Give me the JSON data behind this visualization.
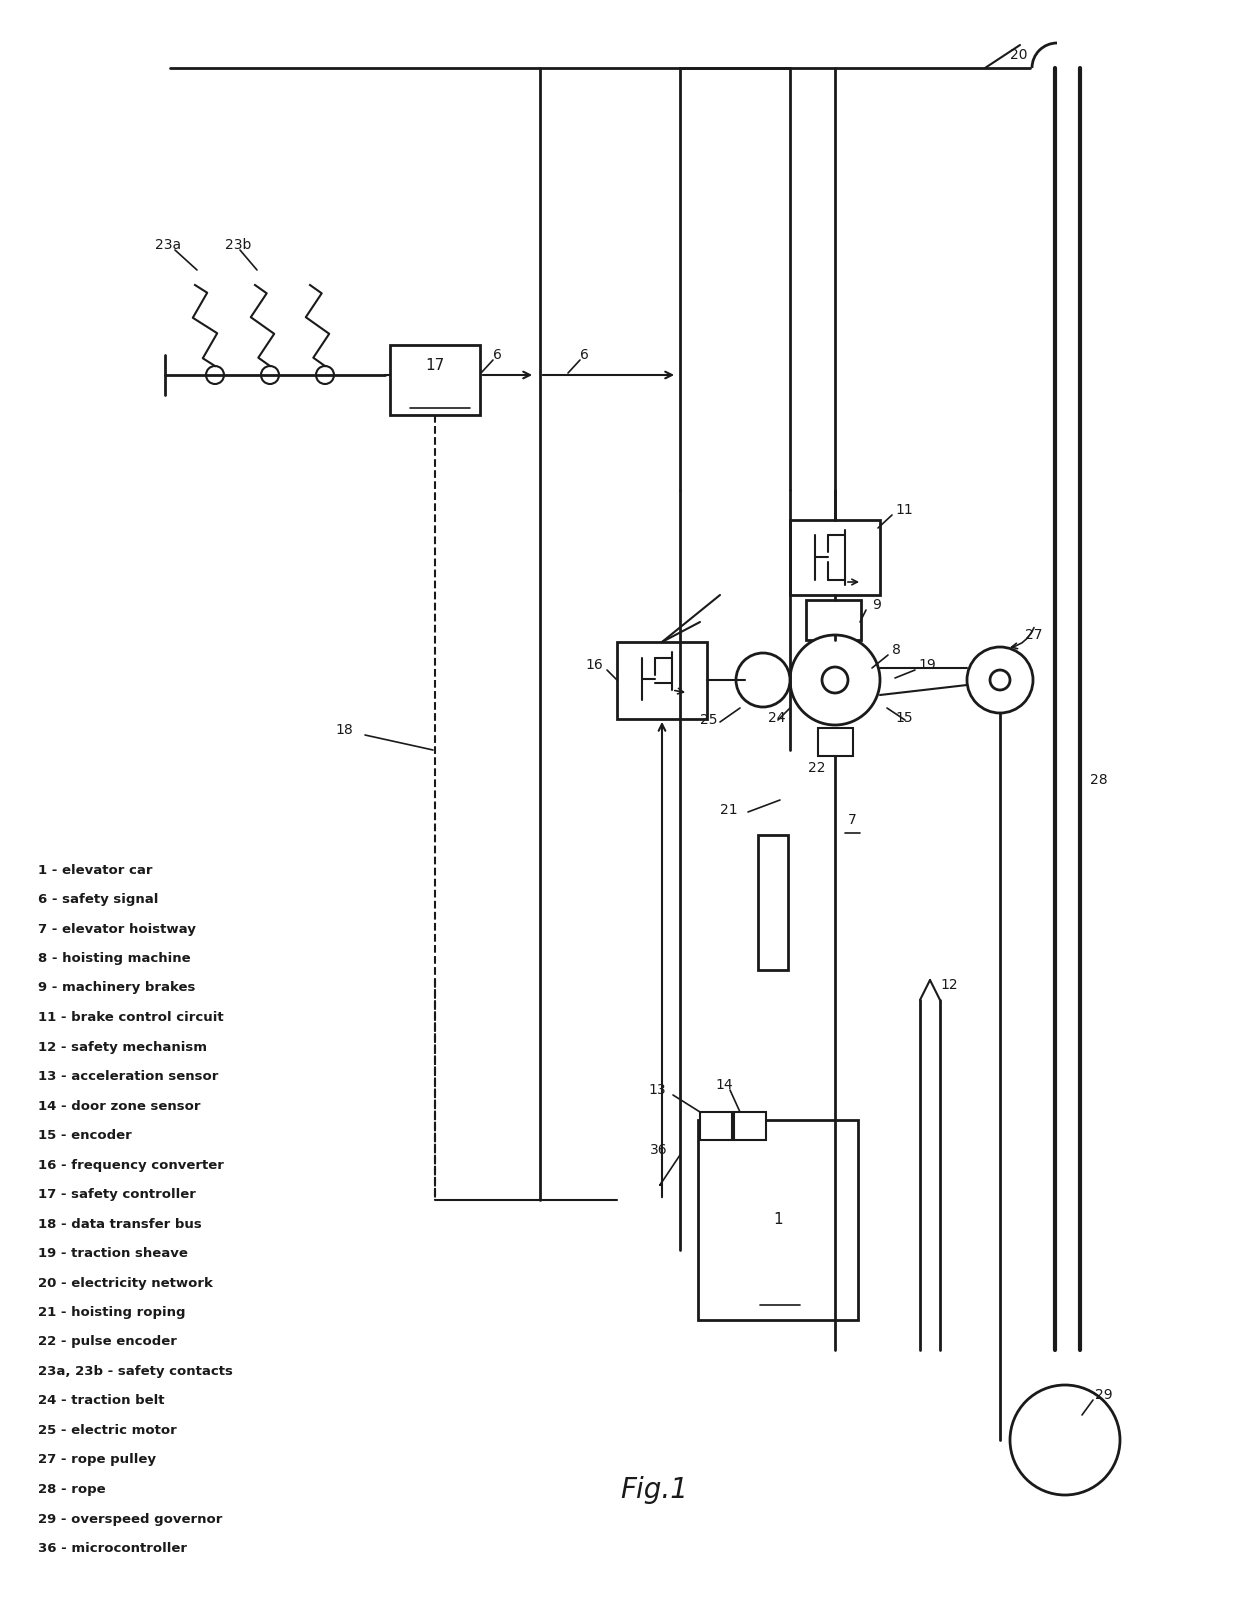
{
  "bg_color": "#ffffff",
  "line_color": "#1a1a1a",
  "fig_width": 12.4,
  "fig_height": 16.02,
  "legend_items": [
    "1 - elevator car",
    "6 - safety signal",
    "7 - elevator hoistway",
    "8 - hoisting machine",
    "9 - machinery brakes",
    "11 - brake control circuit",
    "12 - safety mechanism",
    "13 - acceleration sensor",
    "14 - door zone sensor",
    "15 - encoder",
    "16 - frequency converter",
    "17 - safety controller",
    "18 - data transfer bus",
    "19 - traction sheave",
    "20 - electricity network",
    "21 - hoisting roping",
    "22 - pulse encoder",
    "23a, 23b - safety contacts",
    "24 - traction belt",
    "25 - electric motor",
    "27 - rope pulley",
    "28 - rope",
    "29 - overspeed governor",
    "36 - microcontroller"
  ]
}
